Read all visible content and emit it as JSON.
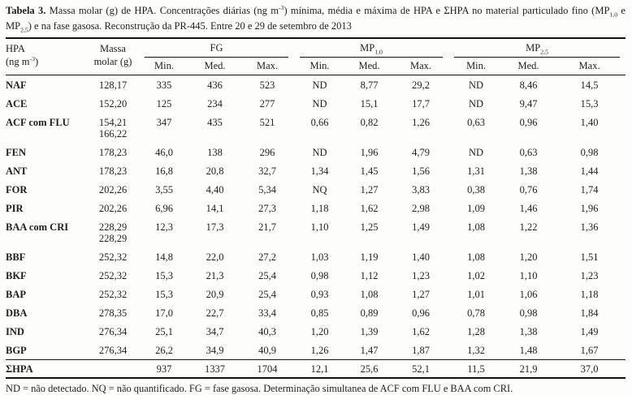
{
  "caption": {
    "label": "Tabela 3.",
    "part1": " Massa molar (g) de HPA. Concentrações diárias (ng m",
    "sup1": "-3",
    "part2": ") mínima, média e máxima de HPA e ΣHPA no material particulado fino (MP",
    "sub1": "1,0",
    "part3": " e MP",
    "sub2": "2,5",
    "part4": ") e na fase gasosa. Reconstrução da PR-445. Entre 20 e 29 de setembro de 2013"
  },
  "header": {
    "col1_line1": "HPA",
    "col1_line2_pre": "(ng m",
    "col1_sup": "-3",
    "col1_line2_post": ")",
    "col2_line1": "Massa",
    "col2_line2": "molar (g)",
    "groups": [
      {
        "label": "FG",
        "sub": ""
      },
      {
        "label": "MP",
        "sub": "1,0"
      },
      {
        "label": "MP",
        "sub": "2,5"
      }
    ],
    "subcols": [
      "Min.",
      "Med.",
      "Max."
    ]
  },
  "rows": [
    {
      "name": "NAF",
      "massa": "128,17",
      "massa2": "",
      "values": [
        "335",
        "436",
        "523",
        "ND",
        "8,77",
        "29,2",
        "ND",
        "8,46",
        "14,5"
      ]
    },
    {
      "name": "ACE",
      "massa": "152,20",
      "massa2": "",
      "values": [
        "125",
        "234",
        "277",
        "ND",
        "15,1",
        "17,7",
        "ND",
        "9,47",
        "15,3"
      ]
    },
    {
      "name": "ACF com FLU",
      "massa": "154,21",
      "massa2": "166,22",
      "values": [
        "347",
        "435",
        "521",
        "0,66",
        "0,82",
        "1,26",
        "0,63",
        "0,96",
        "1,40"
      ]
    },
    {
      "name": "FEN",
      "massa": "178,23",
      "massa2": "",
      "values": [
        "46,0",
        "138",
        "296",
        "ND",
        "1,96",
        "4,79",
        "ND",
        "0,63",
        "0,98"
      ]
    },
    {
      "name": "ANT",
      "massa": "178,23",
      "massa2": "",
      "values": [
        "16,8",
        "20,8",
        "32,7",
        "1,34",
        "1,45",
        "1,56",
        "1,31",
        "1,38",
        "1,44"
      ]
    },
    {
      "name": "FOR",
      "massa": "202,26",
      "massa2": "",
      "values": [
        "3,55",
        "4,40",
        "5,34",
        "NQ",
        "1,27",
        "3,83",
        "0,38",
        "0,76",
        "1,74"
      ]
    },
    {
      "name": "PIR",
      "massa": "202,26",
      "massa2": "",
      "values": [
        "6,96",
        "14,1",
        "27,3",
        "1,18",
        "1,62",
        "2,98",
        "1,09",
        "1,46",
        "1,96"
      ]
    },
    {
      "name": "BAA com CRI",
      "massa": "228,29",
      "massa2": "228,29",
      "values": [
        "12,3",
        "17,3",
        "21,7",
        "1,10",
        "1,25",
        "1,49",
        "1,08",
        "1,22",
        "1,36"
      ]
    },
    {
      "name": "BBF",
      "massa": "252,32",
      "massa2": "",
      "values": [
        "14,8",
        "22,0",
        "27,2",
        "1,03",
        "1,19",
        "1,40",
        "1,08",
        "1,20",
        "1,51"
      ]
    },
    {
      "name": "BKF",
      "massa": "252,32",
      "massa2": "",
      "values": [
        "15,3",
        "21,3",
        "25,4",
        "0,98",
        "1,12",
        "1,23",
        "1,02",
        "1,10",
        "1,23"
      ]
    },
    {
      "name": "BAP",
      "massa": "252,32",
      "massa2": "",
      "values": [
        "15,3",
        "20,9",
        "25,4",
        "0,93",
        "1,08",
        "1,27",
        "1,01",
        "1,06",
        "1,18"
      ]
    },
    {
      "name": "DBA",
      "massa": "278,35",
      "massa2": "",
      "values": [
        "17,0",
        "22,7",
        "33,4",
        "0,85",
        "0,89",
        "0,96",
        "0,78",
        "0,98",
        "1,84"
      ]
    },
    {
      "name": "IND",
      "massa": "276,34",
      "massa2": "",
      "values": [
        "25,1",
        "34,7",
        "40,3",
        "1,20",
        "1,39",
        "1,62",
        "1,28",
        "1,38",
        "1,49"
      ]
    },
    {
      "name": "BGP",
      "massa": "276,34",
      "massa2": "",
      "values": [
        "26,2",
        "34,9",
        "40,9",
        "1,26",
        "1,47",
        "1,87",
        "1,32",
        "1,48",
        "1,67"
      ]
    }
  ],
  "total_row": {
    "name": "ΣHPA",
    "massa": "",
    "values": [
      "937",
      "1337",
      "1704",
      "12,1",
      "25,6",
      "52,1",
      "11,5",
      "21,9",
      "37,0"
    ]
  },
  "footnote": "ND = não detectado. NQ = não quantificado. FG = fase gasosa. Determinação simultanea de ACF com FLU e BAA com CRI."
}
